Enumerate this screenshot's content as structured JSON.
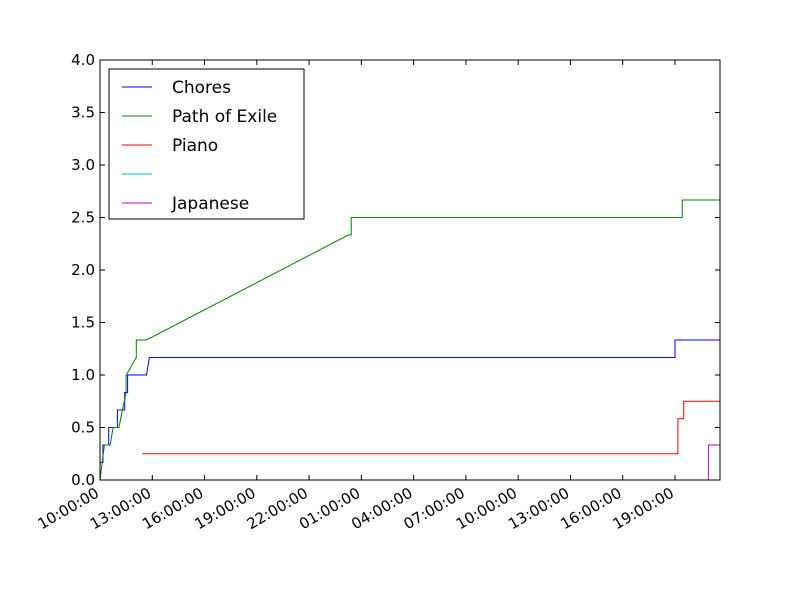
{
  "chart_data": {
    "type": "line",
    "title": "",
    "xlabel": "",
    "ylabel": "",
    "xlim": [
      "10:00:00",
      "21:35:00 (next day)"
    ],
    "ylim": [
      0,
      4.0
    ],
    "x_unit": "clock time over two consecutive days (day 1 10:00:00 to day 2 ~21:35:00)",
    "x_ticks": [
      "10:00:00",
      "13:00:00",
      "16:00:00",
      "19:00:00",
      "22:00:00",
      "01:00:00",
      "04:00:00",
      "07:00:00",
      "10:00:00",
      "13:00:00",
      "16:00:00",
      "19:00:00"
    ],
    "y_ticks": [
      "0.0",
      "0.5",
      "1.0",
      "1.5",
      "2.0",
      "2.5",
      "3.0",
      "3.5",
      "4.0"
    ],
    "y_tick_values": [
      0,
      0.5,
      1.0,
      1.5,
      2.0,
      2.5,
      3.0,
      3.5,
      4.0
    ],
    "legend_position": "top-left",
    "grid": false,
    "series": [
      {
        "name": "Chores",
        "color": "#0000ff",
        "points": [
          {
            "x": "d1 10:00",
            "y": 0.1667
          },
          {
            "x": "d1 10:10",
            "y": 0.1667
          },
          {
            "x": "d1 10:10",
            "y": 0.3333
          },
          {
            "x": "d1 10:30",
            "y": 0.3333
          },
          {
            "x": "d1 10:30",
            "y": 0.5
          },
          {
            "x": "d1 11:00",
            "y": 0.5
          },
          {
            "x": "d1 11:00",
            "y": 0.6667
          },
          {
            "x": "d1 11:25",
            "y": 0.6667
          },
          {
            "x": "d1 11:25",
            "y": 0.8333
          },
          {
            "x": "d1 11:35",
            "y": 0.8333
          },
          {
            "x": "d1 11:35",
            "y": 1.0
          },
          {
            "x": "d1 12:40",
            "y": 1.0
          },
          {
            "x": "d1 12:50",
            "y": 1.1667
          },
          {
            "x": "d2 19:00",
            "y": 1.1667
          },
          {
            "x": "d2 19:00",
            "y": 1.3333
          },
          {
            "x": "d2 21:35",
            "y": 1.3333
          }
        ]
      },
      {
        "name": "Path of Exile",
        "color": "#008000",
        "points": [
          {
            "x": "d1 10:00",
            "y": 0.0
          },
          {
            "x": "d1 10:15",
            "y": 0.3333
          },
          {
            "x": "d1 10:35",
            "y": 0.3333
          },
          {
            "x": "d1 10:45",
            "y": 0.5
          },
          {
            "x": "d1 11:05",
            "y": 0.5
          },
          {
            "x": "d1 11:30",
            "y": 0.8333
          },
          {
            "x": "d1 11:30",
            "y": 1.0
          },
          {
            "x": "d1 12:05",
            "y": 1.1667
          },
          {
            "x": "d1 12:05",
            "y": 1.3333
          },
          {
            "x": "d1 12:40",
            "y": 1.3333
          },
          {
            "x": "d2 00:15",
            "y": 2.3333
          },
          {
            "x": "d2 00:25",
            "y": 2.3333
          },
          {
            "x": "d2 00:25",
            "y": 2.5
          },
          {
            "x": "d2 19:25",
            "y": 2.5
          },
          {
            "x": "d2 19:25",
            "y": 2.6667
          },
          {
            "x": "d2 21:35",
            "y": 2.6667
          }
        ]
      },
      {
        "name": "Piano",
        "color": "#ff0000",
        "points": [
          {
            "x": "d1 12:25",
            "y": 0.25
          },
          {
            "x": "d2 19:10",
            "y": 0.25
          },
          {
            "x": "d2 19:10",
            "y": 0.5833
          },
          {
            "x": "d2 19:30",
            "y": 0.5833
          },
          {
            "x": "d2 19:30",
            "y": 0.75
          },
          {
            "x": "d2 21:35",
            "y": 0.75
          }
        ]
      },
      {
        "name": "",
        "color": "#00bfbf",
        "points": []
      },
      {
        "name": "Japanese",
        "color": "#bf00bf",
        "points": [
          {
            "x": "d2 20:55",
            "y": 0.0
          },
          {
            "x": "d2 20:55",
            "y": 0.3333
          },
          {
            "x": "d2 21:35",
            "y": 0.3333
          }
        ]
      }
    ]
  }
}
